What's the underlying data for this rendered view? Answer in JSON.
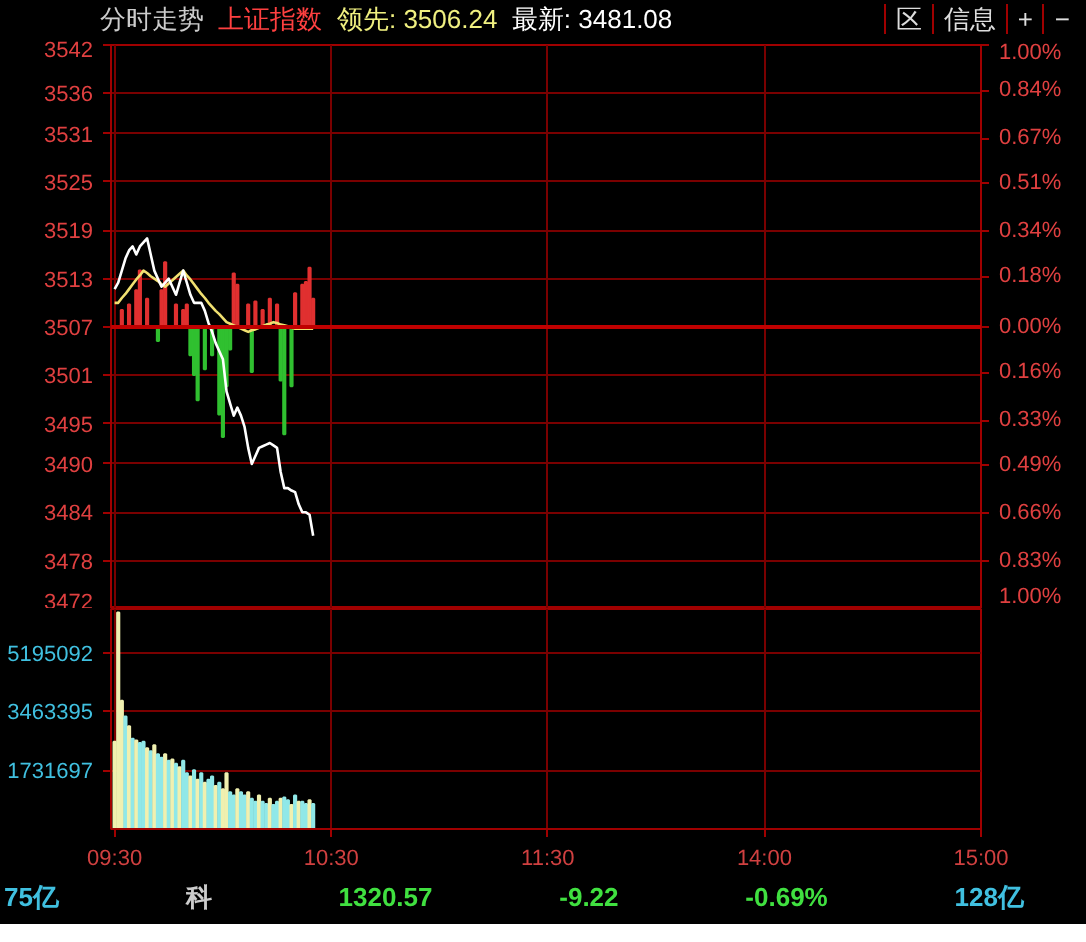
{
  "chart_data": [
    {
      "type": "line",
      "title": "分时走势",
      "subtitle": "上证指数",
      "annotations": [
        "领先: 3506.24",
        "最新: 3481.08",
        "区",
        "信息",
        "+",
        "−",
        "75亿",
        "科",
        "1320.57",
        "-9.22",
        "-0.69%",
        "128亿"
      ],
      "categories": [
        null,
        null,
        null,
        null,
        null,
        null,
        null,
        null,
        null,
        null,
        null,
        null,
        null,
        null,
        null,
        null,
        null,
        null,
        null,
        null,
        null,
        null,
        null,
        null,
        null,
        null,
        null,
        null,
        null,
        null,
        null,
        null,
        null,
        null,
        null,
        null,
        null,
        null,
        null,
        null,
        null,
        null,
        null,
        null,
        null,
        null,
        null,
        null,
        null,
        null,
        null,
        null,
        null,
        null,
        null,
        null,
        null,
        null,
        null,
        null,
        null,
        null,
        null,
        null,
        null,
        null,
        null,
        null,
        null,
        null,
        null,
        null,
        null,
        null,
        null,
        null,
        null,
        null,
        null,
        null,
        null,
        null,
        null,
        null,
        null,
        null,
        null,
        null,
        null,
        null,
        null,
        null,
        null,
        null,
        null,
        null,
        null,
        null,
        null,
        null,
        null,
        null,
        null,
        null,
        null,
        null,
        null,
        null,
        null,
        null,
        null,
        null,
        null,
        null,
        null,
        null,
        null,
        null,
        null,
        null,
        null,
        null,
        null,
        null,
        null,
        null,
        null,
        null,
        null,
        null,
        null,
        null,
        null,
        null,
        null,
        null,
        null,
        null,
        null,
        null,
        null,
        null,
        null,
        null,
        null,
        null,
        null,
        null,
        null,
        null,
        null,
        null,
        null,
        null,
        null,
        null,
        null,
        null,
        null,
        null,
        null,
        null,
        null,
        null,
        null,
        null,
        null,
        null,
        null,
        null,
        null,
        null,
        null,
        null,
        null,
        null,
        null,
        null,
        null,
        null,
        null,
        null,
        null,
        null,
        null,
        null,
        null,
        null,
        null,
        null,
        null,
        null,
        null,
        null,
        null,
        null,
        null,
        null,
        null,
        null,
        null,
        null,
        null,
        null,
        null,
        null,
        null,
        null,
        null,
        null,
        null,
        null,
        null,
        null,
        null,
        null,
        null,
        null,
        null,
        null,
        null,
        null,
        null,
        null,
        null,
        null,
        null,
        null,
        null,
        null,
        null,
        null,
        null,
        null,
        null,
        null,
        null,
        null,
        null,
        null,
        null
      ],
      "series": [
        {
          "type": "bar",
          "axis": "y2",
          "color": "#e03030",
          "values": [
            null,
            null,
            0.06,
            null,
            0.08,
            null,
            0.13,
            0.2,
            null,
            0.1,
            null,
            null,
            null,
            0.13,
            0.23,
            null,
            null,
            0.08,
            null,
            0.06,
            0.08,
            null,
            null,
            null,
            null,
            null,
            null,
            null,
            null,
            null,
            null,
            null,
            null,
            0.19,
            0.15,
            null,
            null,
            0.08,
            null,
            0.09,
            null,
            0.06,
            null,
            0.1,
            null,
            0.08,
            null,
            null,
            null,
            null,
            0.12,
            null,
            0.15,
            0.16,
            0.21,
            0.1,
            null,
            null,
            null,
            null,
            null,
            null,
            null,
            null,
            null,
            null,
            null,
            null,
            null,
            null,
            null,
            null,
            null,
            null,
            null,
            null,
            null,
            null,
            null,
            null,
            null,
            null,
            null,
            null,
            null,
            null,
            null,
            null,
            null,
            null,
            null,
            null,
            null,
            null,
            null,
            null,
            null,
            null,
            null,
            null,
            null,
            null,
            null,
            null,
            null,
            null,
            null,
            null,
            null,
            null,
            null,
            null,
            null,
            null,
            null,
            null,
            null,
            null,
            null,
            null,
            null,
            null,
            null,
            null,
            null,
            null,
            null,
            null,
            null,
            null,
            null,
            null,
            null,
            null,
            null,
            null,
            null,
            null,
            null,
            null,
            null,
            null,
            null,
            null,
            null,
            null,
            null,
            null,
            null,
            null,
            null,
            null,
            null,
            null,
            null,
            null,
            null,
            null,
            null,
            null,
            null,
            null,
            null,
            null,
            null,
            null,
            null,
            null,
            null,
            null,
            null,
            null,
            null,
            null,
            null,
            null,
            null,
            null,
            null,
            null,
            null,
            null,
            null,
            null,
            null,
            null,
            null,
            null,
            null,
            null,
            null,
            null,
            null,
            null,
            null,
            null,
            null,
            null,
            null,
            null,
            null,
            null,
            null,
            null,
            null,
            null,
            null,
            null,
            null,
            null,
            null,
            null,
            null,
            null,
            null,
            null,
            null,
            null,
            null,
            null,
            null,
            null,
            null,
            null,
            null,
            null,
            null,
            null,
            null,
            null,
            null,
            null,
            null,
            null,
            null,
            null,
            null,
            null,
            null,
            null,
            null
          ]
        },
        {
          "type": "bar",
          "axis": "y2",
          "color": "#30c030",
          "values": [
            null,
            null,
            null,
            null,
            null,
            null,
            null,
            null,
            null,
            null,
            null,
            null,
            -0.05,
            null,
            null,
            null,
            null,
            null,
            null,
            null,
            null,
            -0.1,
            -0.17,
            -0.26,
            null,
            -0.15,
            null,
            -0.1,
            null,
            -0.31,
            -0.39,
            -0.21,
            -0.08,
            null,
            null,
            null,
            null,
            null,
            -0.16,
            null,
            null,
            null,
            null,
            null,
            null,
            null,
            -0.19,
            -0.38,
            null,
            -0.21,
            null,
            null,
            null,
            null,
            null,
            null,
            null,
            null,
            null,
            null,
            null,
            null,
            null,
            null,
            null,
            null,
            null,
            null,
            null,
            null,
            null,
            null,
            null,
            null,
            null,
            null,
            null,
            null,
            null,
            null,
            null,
            null,
            null,
            null,
            null,
            null,
            null,
            null,
            null,
            null,
            null,
            null,
            null,
            null,
            null,
            null,
            null,
            null,
            null,
            null,
            null,
            null,
            null,
            null,
            null,
            null,
            null,
            null,
            null,
            null,
            null,
            null,
            null,
            null,
            null,
            null,
            null,
            null,
            null,
            null,
            null,
            null,
            null,
            null,
            null,
            null,
            null,
            null,
            null,
            null,
            null,
            null,
            null,
            null,
            null,
            null,
            null,
            null,
            null,
            null,
            null,
            null,
            null,
            null,
            null,
            null,
            null,
            null,
            null,
            null,
            null,
            null,
            null,
            null,
            null,
            null,
            null,
            null,
            null,
            null,
            null,
            null,
            null,
            null,
            null,
            null,
            null,
            null,
            null,
            null,
            null,
            null,
            null,
            null,
            null,
            null,
            null,
            null,
            null,
            null,
            null,
            null,
            null,
            null,
            null,
            null,
            null,
            null,
            null,
            null,
            null,
            null,
            null,
            null,
            null,
            null,
            null,
            null,
            null,
            null,
            null,
            null,
            null,
            null,
            null,
            null,
            null,
            null,
            null,
            null,
            null,
            null,
            null,
            null,
            null,
            null,
            null,
            null,
            null,
            null,
            null,
            null,
            null,
            null,
            null,
            null,
            null,
            null,
            null,
            null,
            null,
            null,
            null,
            null,
            null,
            null,
            null,
            null,
            null,
            null,
            null
          ]
        },
        {
          "type": "line",
          "color": "#f0e070",
          "values": [
            3510,
            3510,
            3510.6,
            3511.1,
            3511.7,
            3512.3,
            3512.9,
            3513.4,
            3514,
            3513.7,
            3513.3,
            3513,
            3512.7,
            3512.3,
            3512,
            3512.4,
            3512.8,
            3513.2,
            3513.6,
            3514,
            3513.4,
            3512.9,
            3512.3,
            3511.7,
            3511.1,
            3510.6,
            3510,
            3509.5,
            3509,
            3508.6,
            3508.1,
            3507.6,
            3507.4,
            3507.2,
            3507,
            3506.8,
            3506.6,
            3506.4,
            3506.6,
            3506.7,
            3506.9,
            3507.1,
            3507.3,
            3507.4,
            3507.6,
            3507.5,
            3507.3,
            3507.2,
            3507.1,
            3506.9,
            3506.8,
            3506.8,
            3506.8,
            3506.8,
            3506.8,
            3506.8,
            null,
            null,
            null,
            null,
            null,
            null,
            null,
            null,
            null,
            null,
            null,
            null,
            null,
            null,
            null,
            null,
            null,
            null,
            null,
            null,
            null,
            null,
            null,
            null,
            null,
            null,
            null,
            null,
            null,
            null,
            null,
            null,
            null,
            null,
            null,
            null,
            null,
            null,
            null,
            null,
            null,
            null,
            null,
            null,
            null,
            null,
            null,
            null,
            null,
            null,
            null,
            null,
            null,
            null,
            null,
            null,
            null,
            null,
            null,
            null,
            null,
            null,
            null,
            null,
            null,
            null,
            null,
            null,
            null,
            null,
            null,
            null,
            null,
            null,
            null,
            null,
            null,
            null,
            null,
            null,
            null,
            null,
            null,
            null,
            null,
            null,
            null,
            null,
            null,
            null,
            null,
            null,
            null,
            null,
            null,
            null,
            null,
            null,
            null,
            null,
            null,
            null,
            null,
            null,
            null,
            null,
            null,
            null,
            null,
            null,
            null,
            null,
            null,
            null,
            null,
            null,
            null,
            null,
            null,
            null,
            null,
            null,
            null,
            null,
            null,
            null,
            null,
            null,
            null,
            null,
            null,
            null,
            null,
            null,
            null,
            null,
            null,
            null,
            null,
            null,
            null,
            null,
            null,
            null,
            null,
            null,
            null,
            null,
            null,
            null,
            null,
            null,
            null,
            null,
            null,
            null,
            null,
            null,
            null,
            null,
            null,
            null,
            null,
            null,
            null,
            null,
            null,
            null,
            null,
            null,
            null,
            null,
            null,
            null,
            null,
            null,
            null,
            null,
            null,
            null,
            null,
            null,
            null,
            null,
            null
          ]
        },
        {
          "type": "line",
          "color": "#ffffff",
          "values": [
            3511.7,
            3512.5,
            3514,
            3515.5,
            3516.5,
            3517,
            3516,
            3517,
            3517.5,
            3518,
            3516,
            3514,
            3513,
            3512,
            3512.5,
            3513,
            3512,
            3511,
            3512.5,
            3514,
            3512.5,
            3511,
            3510,
            3510,
            3510,
            3509,
            3507.5,
            3506.4,
            3505,
            3504,
            3503,
            3499,
            3497.5,
            3496,
            3497,
            3496,
            3494.6,
            3492,
            3490,
            3491,
            3492,
            3492.2,
            3492.4,
            3492.6,
            3492.3,
            3492,
            3489,
            3487,
            3487,
            3486.7,
            3486.5,
            3485,
            3484,
            3484,
            3483.7,
            3481.1,
            null,
            null,
            null,
            null,
            null,
            null,
            null,
            null,
            null,
            null,
            null,
            null,
            null,
            null,
            null,
            null,
            null,
            null,
            null,
            null,
            null,
            null,
            null,
            null,
            null,
            null,
            null,
            null,
            null,
            null,
            null,
            null,
            null,
            null,
            null,
            null,
            null,
            null,
            null,
            null,
            null,
            null,
            null,
            null,
            null,
            null,
            null,
            null,
            null,
            null,
            null,
            null,
            null,
            null,
            null,
            null,
            null,
            null,
            null,
            null,
            null,
            null,
            null,
            null,
            null,
            null,
            null,
            null,
            null,
            null,
            null,
            null,
            null,
            null,
            null,
            null,
            null,
            null,
            null,
            null,
            null,
            null,
            null,
            null,
            null,
            null,
            null,
            null,
            null,
            null,
            null,
            null,
            null,
            null,
            null,
            null,
            null,
            null,
            null,
            null,
            null,
            null,
            null,
            null,
            null,
            null,
            null,
            null,
            null,
            null,
            null,
            null,
            null,
            null,
            null,
            null,
            null,
            null,
            null,
            null,
            null,
            null,
            null,
            null,
            null,
            null,
            null,
            null,
            null,
            null,
            null,
            null,
            null,
            null,
            null,
            null,
            null,
            null,
            null,
            null,
            null,
            null,
            null,
            null,
            null,
            null,
            null,
            null,
            null,
            null,
            null,
            null,
            null,
            null,
            null,
            null,
            null,
            null,
            null,
            null,
            null,
            null,
            null,
            null,
            null,
            null,
            null,
            null,
            null,
            null,
            null,
            null,
            null,
            null,
            null,
            null,
            null,
            null,
            null,
            null,
            null,
            null,
            null,
            null,
            null
          ]
        }
      ],
      "ylim": [
        3472,
        3542
      ],
      "yticks": [
        3542,
        3536,
        3531,
        3525,
        3519,
        3513,
        3507,
        3501,
        3495,
        3490,
        3484,
        3478,
        3472
      ],
      "y2lim": [
        -1.0,
        1.0
      ],
      "y2ticks": [
        {
          "value": 1.0,
          "label": "1.00%"
        },
        {
          "value": 0.84,
          "label": "0.84%"
        },
        {
          "value": 0.67,
          "label": "0.67%"
        },
        {
          "value": 0.51,
          "label": "0.51%"
        },
        {
          "value": 0.34,
          "label": "0.34%"
        },
        {
          "value": 0.18,
          "label": "0.18%"
        },
        {
          "value": 0,
          "label": "0.00%"
        },
        {
          "value": -0.16,
          "label": "0.16%"
        },
        {
          "value": -0.33,
          "label": "0.33%"
        },
        {
          "value": -0.49,
          "label": "0.49%"
        },
        {
          "value": -0.66,
          "label": "0.66%"
        },
        {
          "value": -0.83,
          "label": "0.83%"
        },
        {
          "value": -1.0,
          "label": "1.00%"
        }
      ],
      "ref_lines": [
        {
          "axis": "y",
          "value": 3507,
          "color": "#c00000"
        }
      ],
      "tick_labels": "y",
      "grid": true
    },
    {
      "type": "bar",
      "categories": [
        "09:30",
        null,
        null,
        null,
        null,
        null,
        null,
        null,
        null,
        null,
        null,
        null,
        null,
        null,
        null,
        null,
        null,
        null,
        null,
        null,
        null,
        null,
        null,
        null,
        null,
        null,
        null,
        null,
        null,
        null,
        null,
        null,
        null,
        null,
        null,
        null,
        null,
        null,
        null,
        null,
        null,
        null,
        null,
        null,
        null,
        null,
        null,
        null,
        null,
        null,
        null,
        null,
        null,
        null,
        null,
        null,
        null,
        null,
        null,
        null,
        "10:30",
        null,
        null,
        null,
        null,
        null,
        null,
        null,
        null,
        null,
        null,
        null,
        null,
        null,
        null,
        null,
        null,
        null,
        null,
        null,
        null,
        null,
        null,
        null,
        null,
        null,
        null,
        null,
        null,
        null,
        null,
        null,
        null,
        null,
        null,
        null,
        null,
        null,
        null,
        null,
        null,
        null,
        null,
        null,
        null,
        null,
        null,
        null,
        null,
        null,
        null,
        null,
        null,
        null,
        null,
        null,
        null,
        null,
        null,
        null,
        "11:30",
        null,
        null,
        null,
        null,
        null,
        null,
        null,
        null,
        null,
        null,
        null,
        null,
        null,
        null,
        null,
        null,
        null,
        null,
        null,
        null,
        null,
        null,
        null,
        null,
        null,
        null,
        null,
        null,
        null,
        null,
        null,
        null,
        null,
        null,
        null,
        null,
        null,
        null,
        null,
        null,
        null,
        null,
        null,
        null,
        null,
        null,
        null,
        null,
        null,
        null,
        null,
        null,
        null,
        null,
        null,
        null,
        null,
        null,
        null,
        "14:00",
        null,
        null,
        null,
        null,
        null,
        null,
        null,
        null,
        null,
        null,
        null,
        null,
        null,
        null,
        null,
        null,
        null,
        null,
        null,
        null,
        null,
        null,
        null,
        null,
        null,
        null,
        null,
        null,
        null,
        null,
        null,
        null,
        null,
        null,
        null,
        null,
        null,
        null,
        null,
        null,
        null,
        null,
        null,
        null,
        null,
        null,
        null,
        null,
        null,
        null,
        null,
        null,
        null,
        null,
        null,
        null,
        null,
        null,
        null,
        "15:00"
      ],
      "values": [
        2570000,
        6380000,
        3780000,
        3310000,
        3030000,
        2660000,
        2610000,
        2530000,
        2570000,
        2380000,
        2290000,
        2470000,
        2200000,
        2100000,
        2200000,
        2010000,
        2050000,
        1920000,
        1820000,
        2010000,
        1640000,
        1550000,
        1730000,
        1450000,
        1640000,
        1360000,
        1450000,
        1550000,
        1270000,
        1360000,
        1170000,
        1640000,
        1080000,
        990000,
        1170000,
        1080000,
        990000,
        1080000,
        890000,
        800000,
        990000,
        800000,
        740000,
        890000,
        710000,
        800000,
        890000,
        930000,
        850000,
        710000,
        990000,
        800000,
        800000,
        740000,
        850000,
        740000,
        null,
        null,
        null,
        null,
        null,
        null,
        null,
        null,
        null,
        null,
        null,
        null,
        null,
        null,
        null,
        null,
        null,
        null,
        null,
        null,
        null,
        null,
        null,
        null,
        null,
        null,
        null,
        null,
        null,
        null,
        null,
        null,
        null,
        null,
        null,
        null,
        null,
        null,
        null,
        null,
        null,
        null,
        null,
        null,
        null,
        null,
        null,
        null,
        null,
        null,
        null,
        null,
        null,
        null,
        null,
        null,
        null,
        null,
        null,
        null,
        null,
        null,
        null,
        null,
        null,
        null,
        null,
        null,
        null,
        null,
        null,
        null,
        null,
        null,
        null,
        null,
        null,
        null,
        null,
        null,
        null,
        null,
        null,
        null,
        null,
        null,
        null,
        null,
        null,
        null,
        null,
        null,
        null,
        null,
        null,
        null,
        null,
        null,
        null,
        null,
        null,
        null,
        null,
        null,
        null,
        null,
        null,
        null,
        null,
        null,
        null,
        null,
        null,
        null,
        null,
        null,
        null,
        null,
        null,
        null,
        null,
        null,
        null,
        null,
        null,
        null,
        null,
        null,
        null,
        null,
        null,
        null,
        null,
        null,
        null,
        null,
        null,
        null,
        null,
        null,
        null,
        null,
        null,
        null,
        null,
        null,
        null,
        null,
        null,
        null,
        null,
        null,
        null,
        null,
        null,
        null,
        null,
        null,
        null,
        null,
        null,
        null,
        null,
        null,
        null,
        null,
        null,
        null,
        null,
        null,
        null,
        null,
        null,
        null,
        null,
        null,
        null,
        null,
        null,
        null,
        null,
        null,
        null,
        null,
        null
      ],
      "colors": [
        "#f0f0b0",
        "#f0f0b0",
        "#f0f0b0",
        "#90e8e8",
        "#f0f0b0",
        "#90e8e8",
        "#f0f0b0",
        "#90e8e8",
        "#90e8e8",
        "#f0f0b0",
        "#90e8e8",
        "#f0f0b0",
        "#90e8e8",
        "#90e8e8",
        "#f0f0b0",
        "#90e8e8",
        "#f0f0b0",
        "#90e8e8",
        "#f0f0b0",
        "#90e8e8",
        "#90e8e8",
        "#f0f0b0",
        "#90e8e8",
        "#f0f0b0",
        "#90e8e8",
        "#f0f0b0",
        "#90e8e8",
        "#90e8e8",
        "#f0f0b0",
        "#90e8e8",
        "#f0f0b0",
        "#f0f0b0",
        "#90e8e8",
        "#90e8e8",
        "#f0f0b0",
        "#90e8e8",
        "#90e8e8",
        "#f0f0b0",
        "#90e8e8",
        "#90e8e8",
        "#f0f0b0",
        "#90e8e8",
        "#90e8e8",
        "#f0f0b0",
        "#90e8e8",
        "#90e8e8",
        "#f0f0b0",
        "#90e8e8",
        "#90e8e8",
        "#f0f0b0",
        "#90e8e8",
        "#f0f0b0",
        "#90e8e8",
        "#90e8e8",
        "#f0f0b0",
        "#90e8e8",
        null,
        null,
        null,
        null,
        null,
        null,
        null,
        null,
        null,
        null,
        null,
        null,
        null,
        null,
        null,
        null,
        null,
        null,
        null,
        null,
        null,
        null,
        null,
        null,
        null,
        null,
        null,
        null,
        null,
        null,
        null,
        null,
        null,
        null,
        null,
        null,
        null,
        null,
        null,
        null,
        null,
        null,
        null,
        null,
        null,
        null,
        null,
        null,
        null,
        null,
        null,
        null,
        null,
        null,
        null,
        null,
        null,
        null,
        null,
        null,
        null,
        null,
        null,
        null,
        null,
        null,
        null,
        null,
        null,
        null,
        null,
        null,
        null,
        null,
        null,
        null,
        null,
        null,
        null,
        null,
        null,
        null,
        null,
        null,
        null,
        null,
        null,
        null,
        null,
        null,
        null,
        null,
        null,
        null,
        null,
        null,
        null,
        null,
        null,
        null,
        null,
        null,
        null,
        null,
        null,
        null,
        null,
        null,
        null,
        null,
        null,
        null,
        null,
        null,
        null,
        null,
        null,
        null,
        null,
        null,
        null,
        null,
        null,
        null,
        null,
        null,
        null,
        null,
        null,
        null,
        null,
        null,
        null,
        null,
        null,
        null,
        null,
        null,
        null,
        null,
        null,
        null,
        null,
        null,
        null,
        null,
        null,
        null,
        null,
        null,
        null,
        null,
        null,
        null,
        null,
        null,
        null,
        null,
        null,
        null,
        null,
        null,
        null,
        null,
        null,
        null,
        null,
        null,
        null,
        null,
        null,
        null,
        null,
        null,
        null,
        null,
        null,
        null,
        null,
        null,
        null,
        null,
        null,
        null,
        null
      ],
      "ylim": [
        0,
        6480000
      ],
      "yticks": [
        1731697,
        3463395,
        5195092
      ],
      "grid": true
    }
  ]
}
